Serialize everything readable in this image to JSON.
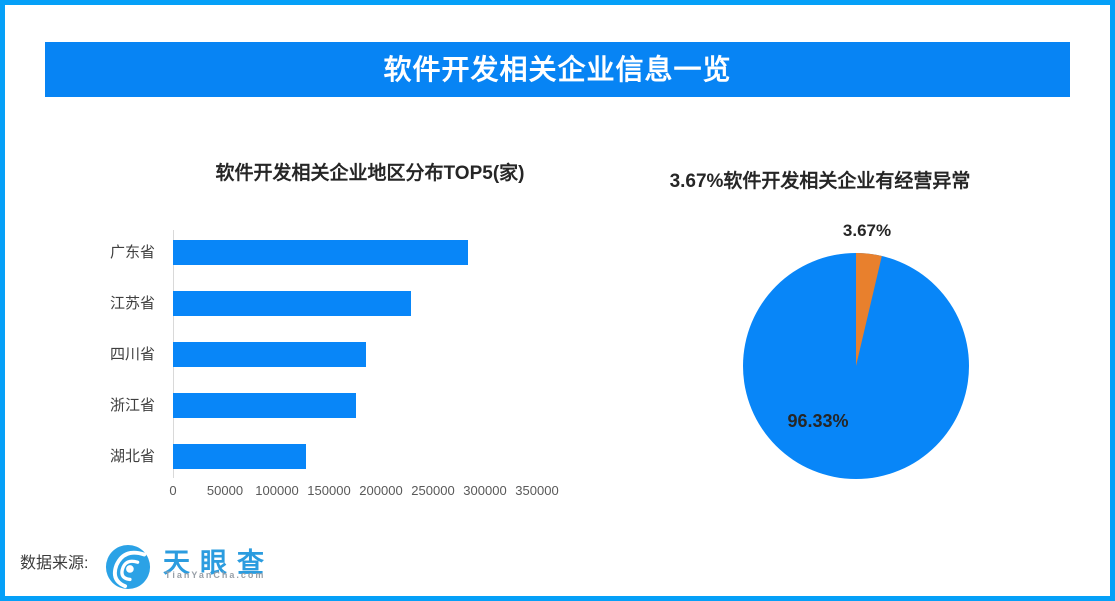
{
  "banner": {
    "title": "软件开发相关企业信息一览"
  },
  "colors": {
    "frame_border": "#05A0F8",
    "banner_bg": "#0784F4",
    "chart_blue": "#0886F8",
    "pie_orange": "#E8802D",
    "logo_blue": "#2B9CDF"
  },
  "chart_data": [
    {
      "type": "bar",
      "orientation": "horizontal",
      "title": "软件开发相关企业地区分布TOP5(家)",
      "categories": [
        "广东省",
        "江苏省",
        "四川省",
        "浙江省",
        "湖北省"
      ],
      "values": [
        284000,
        229000,
        186000,
        176000,
        128000
      ],
      "xticks": [
        0,
        50000,
        100000,
        150000,
        200000,
        250000,
        300000,
        350000
      ],
      "xlim": [
        0,
        350000
      ],
      "bar_color": "#0886F8",
      "grid": false,
      "legend": "none"
    },
    {
      "type": "pie",
      "title": "3.67%软件开发相关企业有经营异常",
      "slices": [
        {
          "label": "96.33%",
          "value": 96.33,
          "color": "#0886F8"
        },
        {
          "label": "3.67%",
          "value": 3.67,
          "color": "#E8802D"
        }
      ],
      "start_angle_deg": -90,
      "direction": "clockwise",
      "legend": "none"
    }
  ],
  "footer": {
    "source_label": "数据来源:",
    "logo_text": "天眼查",
    "logo_subtext": "TianYanCha.com"
  }
}
